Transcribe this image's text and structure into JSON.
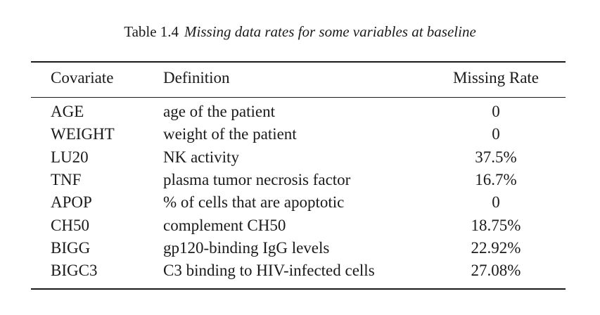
{
  "caption": {
    "label": "Table 1.4",
    "text": "Missing data rates for some variables at baseline"
  },
  "table": {
    "headers": [
      "Covariate",
      "Definition",
      "Missing Rate"
    ],
    "rows": [
      [
        "AGE",
        "age of the patient",
        "0"
      ],
      [
        "WEIGHT",
        "weight of the patient",
        "0"
      ],
      [
        "LU20",
        "NK activity",
        "37.5%"
      ],
      [
        "TNF",
        "plasma tumor necrosis factor",
        "16.7%"
      ],
      [
        "APOP",
        "% of cells that are apoptotic",
        "0"
      ],
      [
        "CH50",
        "complement CH50",
        "18.75%"
      ],
      [
        "BIGG",
        "gp120-binding IgG levels",
        "22.92%"
      ],
      [
        "BIGC3",
        "C3 binding to HIV-infected cells",
        "27.08%"
      ]
    ]
  }
}
